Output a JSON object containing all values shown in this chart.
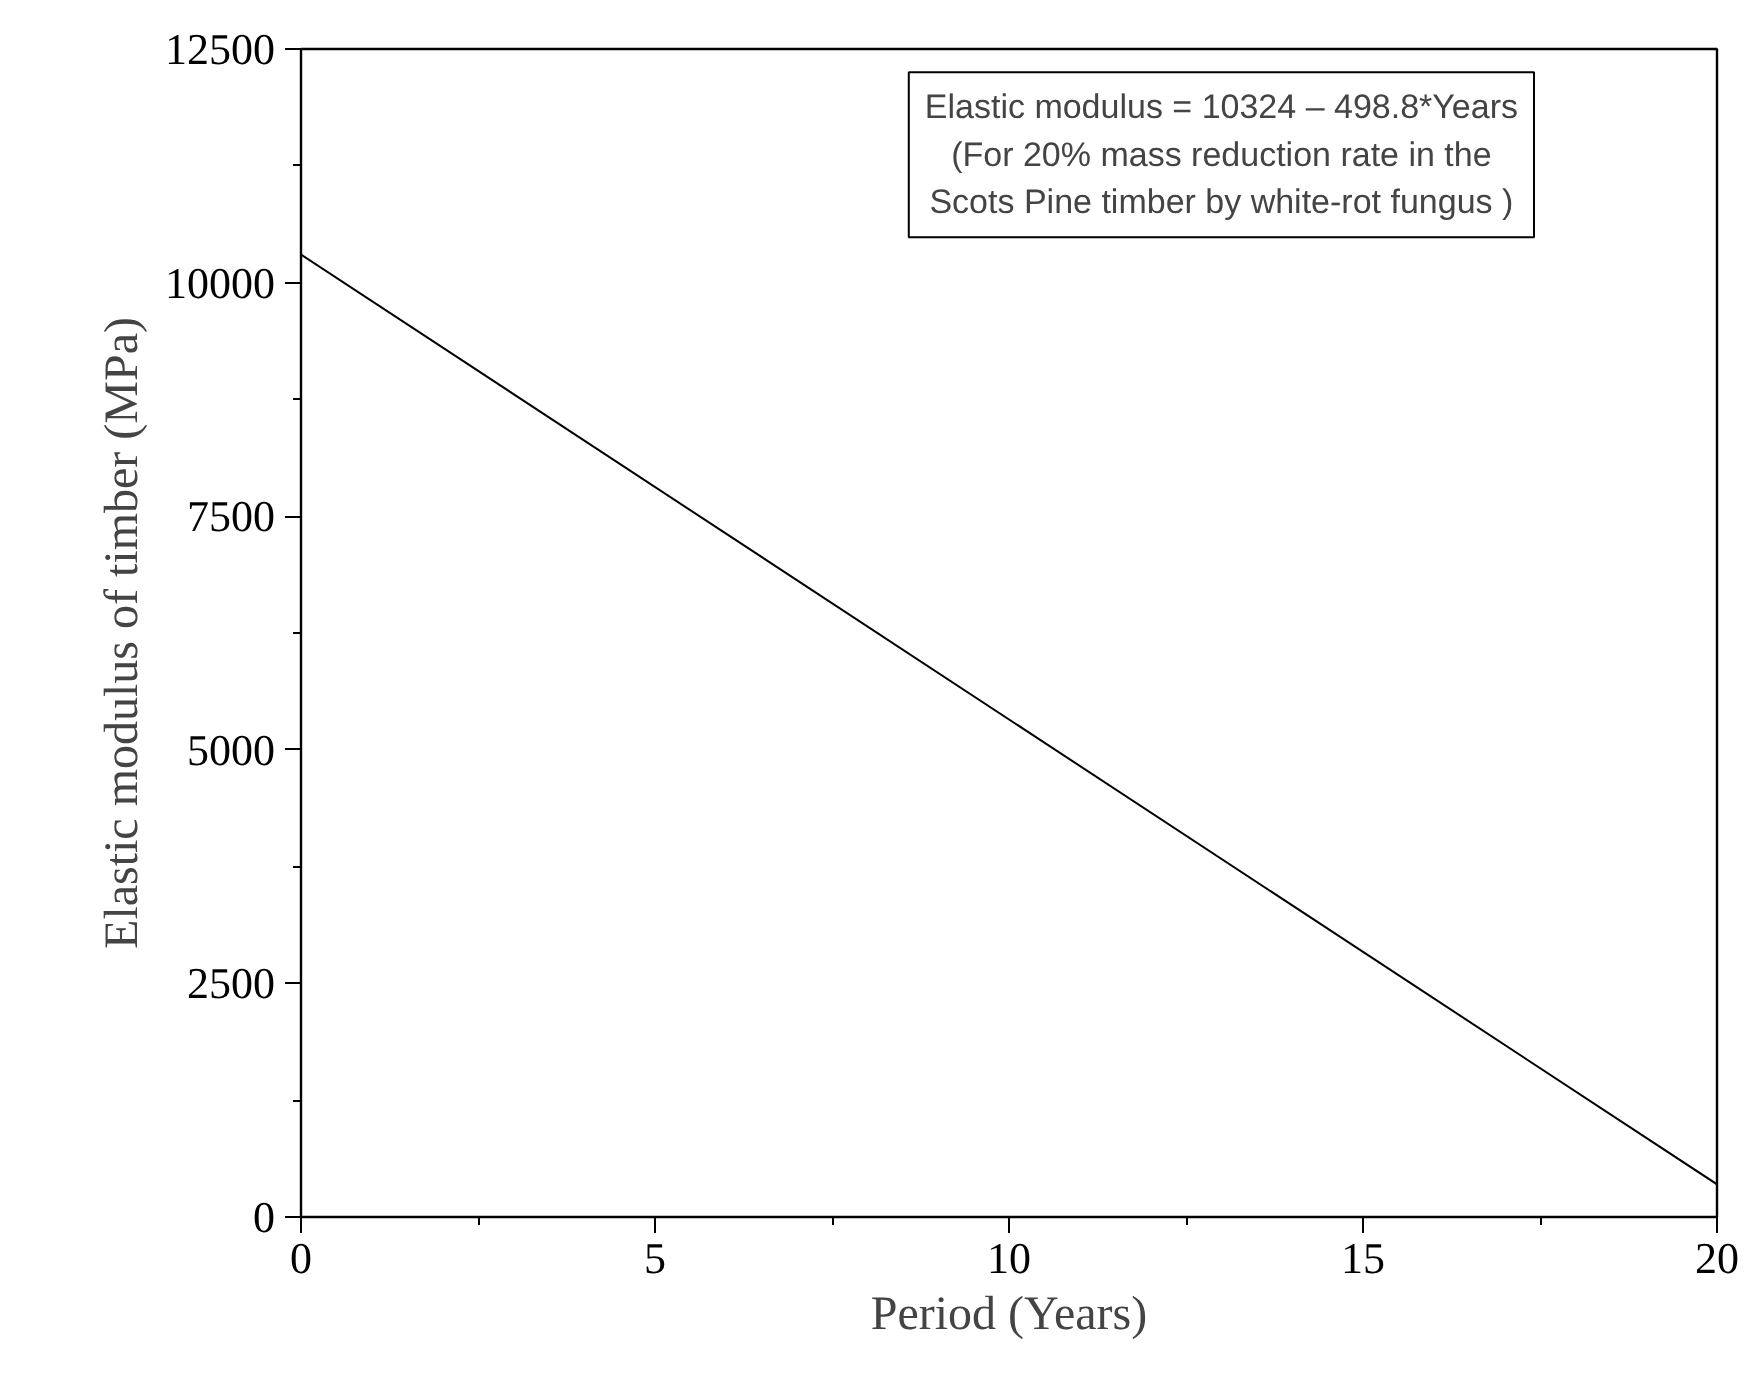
{
  "chart_data": {
    "type": "line",
    "xlabel": "Period (Years)",
    "ylabel": "Elastic modulus of timber (MPa)",
    "x": [
      0,
      20
    ],
    "series": [
      {
        "color": "#000000",
        "values": [
          10300,
          350
        ]
      }
    ],
    "xlim": [
      0,
      20
    ],
    "ylim": [
      0,
      12500
    ],
    "xticks": [
      0,
      5,
      10,
      15,
      20
    ],
    "yticks": [
      0,
      2500,
      5000,
      7500,
      10000,
      12500
    ],
    "grid": false,
    "marker": "none",
    "line_style": "solid",
    "annotations": [
      "Elastic modulus = 10324 – 498.8*Years\n(For 20% mass reduction rate in the\nScots Pine timber by white-rot fungus )"
    ]
  }
}
